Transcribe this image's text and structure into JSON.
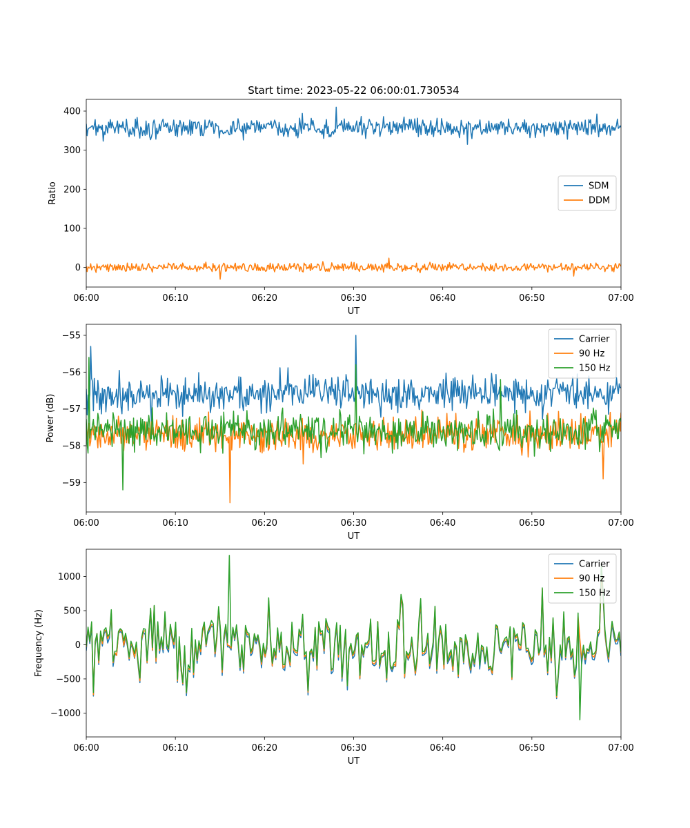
{
  "figure": {
    "title": "Start time: 2023-05-22 06:00:01.730534"
  },
  "chart_data": [
    {
      "type": "line",
      "title": "Start time: 2023-05-22 06:00:01.730534",
      "xlabel": "UT",
      "ylabel": "Ratio",
      "xlim": [
        "06:00",
        "07:00"
      ],
      "ylim": [
        -50,
        430
      ],
      "xticks": [
        "06:00",
        "06:10",
        "06:20",
        "06:30",
        "06:40",
        "06:50",
        "07:00"
      ],
      "yticks": [
        0,
        100,
        200,
        300,
        400
      ],
      "ytick_labels": [
        "0",
        "100",
        "200",
        "300",
        "400"
      ],
      "grid": false,
      "legend": {
        "position": "center-right",
        "entries": [
          "SDM",
          "DDM"
        ]
      },
      "sample_count": 600,
      "series": [
        {
          "name": "SDM",
          "color": "#1f77b4",
          "mean": 358,
          "amplitude": 18,
          "min": 315,
          "max": 410,
          "spikes": [
            [
              28,
              410
            ],
            [
              42.8,
              315
            ]
          ]
        },
        {
          "name": "DDM",
          "color": "#ff7f0e",
          "mean": 0,
          "amplitude": 8,
          "min": -30,
          "max": 25,
          "spikes": [
            [
              15,
              -30
            ],
            [
              34,
              24
            ],
            [
              54.7,
              -22
            ]
          ]
        }
      ]
    },
    {
      "type": "line",
      "title": "",
      "xlabel": "UT",
      "ylabel": "Power (dB)",
      "xlim": [
        "06:00",
        "07:00"
      ],
      "ylim": [
        -59.8,
        -54.7
      ],
      "xticks": [
        "06:00",
        "06:10",
        "06:20",
        "06:30",
        "06:40",
        "06:50",
        "07:00"
      ],
      "yticks": [
        -59,
        -58,
        -57,
        -56,
        -55
      ],
      "ytick_labels": [
        "−59",
        "−58",
        "−57",
        "−56",
        "−55"
      ],
      "grid": false,
      "legend": {
        "position": "top-right",
        "entries": [
          "Carrier",
          "90 Hz",
          "150 Hz"
        ]
      },
      "sample_count": 600,
      "series": [
        {
          "name": "Carrier",
          "color": "#1f77b4",
          "mean": -56.6,
          "amplitude": 0.35,
          "min": -57.5,
          "max": -55.0,
          "spikes": [
            [
              0.5,
              -55.3
            ],
            [
              30.3,
              -55.0
            ]
          ]
        },
        {
          "name": "90 Hz",
          "color": "#ff7f0e",
          "mean": -57.7,
          "amplitude": 0.35,
          "min": -59.55,
          "max": -57.0,
          "spikes": [
            [
              16.1,
              -59.55
            ],
            [
              58,
              -58.9
            ]
          ]
        },
        {
          "name": "150 Hz",
          "color": "#2ca02c",
          "mean": -57.6,
          "amplitude": 0.35,
          "min": -59.2,
          "max": -55.6,
          "spikes": [
            [
              0.3,
              -55.6
            ],
            [
              4.1,
              -59.2
            ],
            [
              30.3,
              -55.8
            ],
            [
              46.5,
              -56.2
            ]
          ]
        }
      ]
    },
    {
      "type": "line",
      "title": "",
      "xlabel": "UT",
      "ylabel": "Frequency (Hz)",
      "xlim": [
        "06:00",
        "07:00"
      ],
      "ylim": [
        -1350,
        1400
      ],
      "xticks": [
        "06:00",
        "06:10",
        "06:20",
        "06:30",
        "06:40",
        "06:50",
        "07:00"
      ],
      "yticks": [
        -1000,
        -500,
        0,
        500,
        1000
      ],
      "ytick_labels": [
        "−1000",
        "−500",
        "0",
        "500",
        "1000"
      ],
      "grid": false,
      "legend": {
        "position": "top-right",
        "entries": [
          "Carrier",
          "90 Hz",
          "150 Hz"
        ]
      },
      "sample_count": 300,
      "series": [
        {
          "name": "Carrier",
          "color": "#1f77b4",
          "mean": -60,
          "amplitude": 380,
          "min": -1230,
          "max": 1000,
          "offset": -60
        },
        {
          "name": "90 Hz",
          "color": "#ff7f0e",
          "mean": -30,
          "amplitude": 380,
          "min": -1150,
          "max": 1050,
          "offset": -30
        },
        {
          "name": "150 Hz",
          "color": "#2ca02c",
          "mean": 0,
          "amplitude": 380,
          "min": -1100,
          "max": 1310,
          "offset": 0,
          "spikes": [
            [
              16.0,
              1310
            ],
            [
              55.3,
              -1100
            ]
          ]
        }
      ]
    }
  ]
}
